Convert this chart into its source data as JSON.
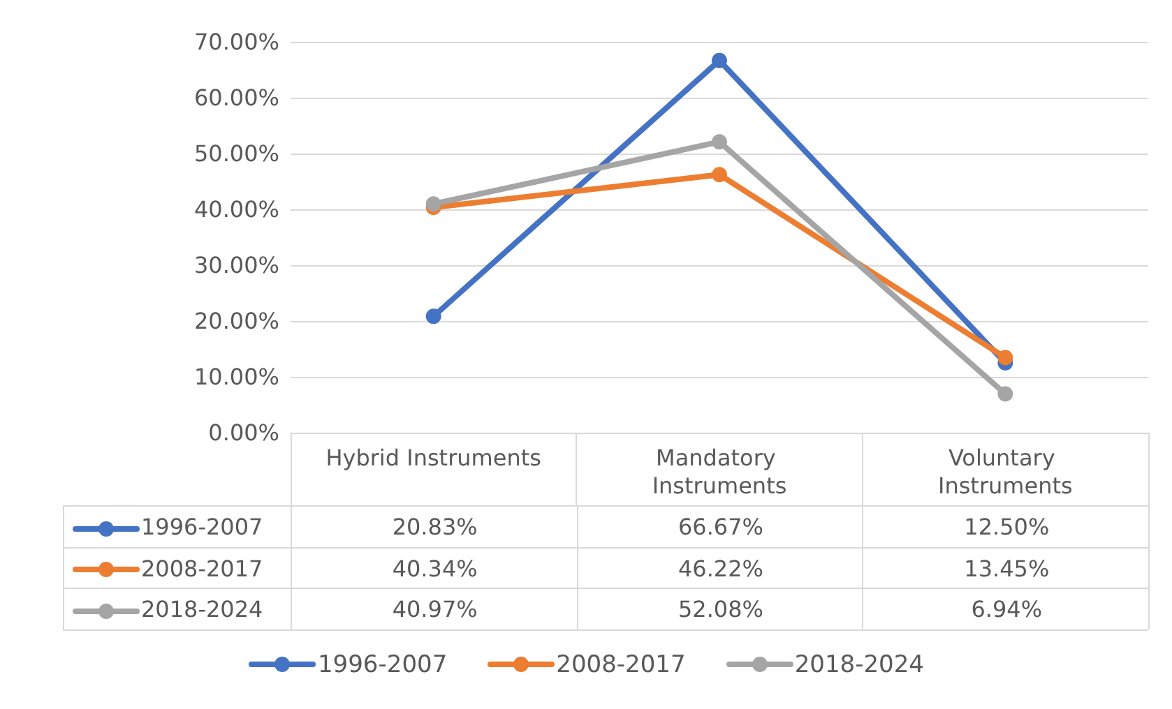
{
  "chart_data": {
    "type": "line",
    "categories": [
      "Hybrid Instruments",
      "Mandatory Instruments",
      "Voluntary Instruments"
    ],
    "series": [
      {
        "name": "1996-2007",
        "color": "#4472c4",
        "values": [
          20.83,
          66.67,
          12.5
        ],
        "value_labels": [
          "20.83%",
          "66.67%",
          "12.50%"
        ]
      },
      {
        "name": "2008-2017",
        "color": "#ed7d31",
        "values": [
          40.34,
          46.22,
          13.45
        ],
        "value_labels": [
          "40.34%",
          "46.22%",
          "13.45%"
        ]
      },
      {
        "name": "2018-2024",
        "color": "#a5a5a5",
        "values": [
          40.97,
          52.08,
          6.94
        ],
        "value_labels": [
          "40.97%",
          "52.08%",
          "6.94%"
        ]
      }
    ],
    "ylim": [
      0,
      70
    ],
    "yticks": [
      {
        "value": 0,
        "label": "0.00%"
      },
      {
        "value": 10,
        "label": "10.00%"
      },
      {
        "value": 20,
        "label": "20.00%"
      },
      {
        "value": 30,
        "label": "30.00%"
      },
      {
        "value": 40,
        "label": "40.00%"
      },
      {
        "value": 50,
        "label": "50.00%"
      },
      {
        "value": 60,
        "label": "60.00%"
      },
      {
        "value": 70,
        "label": "70.00%"
      }
    ],
    "grid": "y",
    "legend": "bottom",
    "marker": "circle",
    "line_style": "solid"
  }
}
